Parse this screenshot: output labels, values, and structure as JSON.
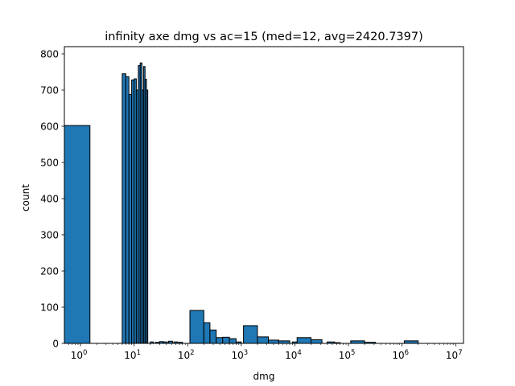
{
  "chart_data": {
    "type": "bar",
    "title": "infinity axe dmg vs ac=15 (med=12, avg=2420.7397)",
    "xlabel": "dmg",
    "ylabel": "count",
    "xscale": "log",
    "xlim": [
      0.5,
      14000000
    ],
    "ylim": [
      0,
      820
    ],
    "bar_color": "#1f77b4",
    "edge_color": "#000000",
    "x_ticks": [
      {
        "value": 1,
        "base": "10",
        "exp": "0"
      },
      {
        "value": 10,
        "base": "10",
        "exp": "1"
      },
      {
        "value": 100,
        "base": "10",
        "exp": "2"
      },
      {
        "value": 1000,
        "base": "10",
        "exp": "3"
      },
      {
        "value": 10000,
        "base": "10",
        "exp": "4"
      },
      {
        "value": 100000,
        "base": "10",
        "exp": "5"
      },
      {
        "value": 1000000,
        "base": "10",
        "exp": "6"
      },
      {
        "value": 10000000,
        "base": "10",
        "exp": "7"
      }
    ],
    "y_ticks": [
      0,
      100,
      200,
      300,
      400,
      500,
      600,
      700,
      800
    ],
    "bins": [
      {
        "x0": 0.5,
        "x1": 1.5,
        "count": 602
      },
      {
        "x0": 6,
        "x1": 7,
        "count": 745
      },
      {
        "x0": 7,
        "x1": 8,
        "count": 737
      },
      {
        "x0": 8,
        "x1": 9,
        "count": 688
      },
      {
        "x0": 9,
        "x1": 10,
        "count": 728
      },
      {
        "x0": 10,
        "x1": 11,
        "count": 731
      },
      {
        "x0": 11,
        "x1": 12,
        "count": 700
      },
      {
        "x0": 12,
        "x1": 13,
        "count": 768
      },
      {
        "x0": 13,
        "x1": 14,
        "count": 775
      },
      {
        "x0": 14,
        "x1": 15,
        "count": 700
      },
      {
        "x0": 15,
        "x1": 16,
        "count": 765
      },
      {
        "x0": 16,
        "x1": 17,
        "count": 730
      },
      {
        "x0": 17,
        "x1": 18,
        "count": 700
      },
      {
        "x0": 20,
        "x1": 23,
        "count": 4
      },
      {
        "x0": 25,
        "x1": 29,
        "count": 3
      },
      {
        "x0": 30,
        "x1": 35,
        "count": 5
      },
      {
        "x0": 36,
        "x1": 42,
        "count": 4
      },
      {
        "x0": 44,
        "x1": 52,
        "count": 6
      },
      {
        "x0": 55,
        "x1": 65,
        "count": 4
      },
      {
        "x0": 68,
        "x1": 80,
        "count": 3
      },
      {
        "x0": 110,
        "x1": 200,
        "count": 91
      },
      {
        "x0": 200,
        "x1": 260,
        "count": 57
      },
      {
        "x0": 260,
        "x1": 340,
        "count": 37
      },
      {
        "x0": 340,
        "x1": 450,
        "count": 16
      },
      {
        "x0": 450,
        "x1": 600,
        "count": 17
      },
      {
        "x0": 600,
        "x1": 800,
        "count": 13
      },
      {
        "x0": 800,
        "x1": 1000,
        "count": 4
      },
      {
        "x0": 1100,
        "x1": 2000,
        "count": 49
      },
      {
        "x0": 2000,
        "x1": 3200,
        "count": 18
      },
      {
        "x0": 3200,
        "x1": 5000,
        "count": 9
      },
      {
        "x0": 5000,
        "x1": 8000,
        "count": 7
      },
      {
        "x0": 9000,
        "x1": 11000,
        "count": 4
      },
      {
        "x0": 11000,
        "x1": 20000,
        "count": 16
      },
      {
        "x0": 20000,
        "x1": 32000,
        "count": 10
      },
      {
        "x0": 40000,
        "x1": 55000,
        "count": 4
      },
      {
        "x0": 55000,
        "x1": 70000,
        "count": 2
      },
      {
        "x0": 110000,
        "x1": 200000,
        "count": 7
      },
      {
        "x0": 200000,
        "x1": 320000,
        "count": 3
      },
      {
        "x0": 1100000,
        "x1": 2000000,
        "count": 7
      }
    ]
  }
}
